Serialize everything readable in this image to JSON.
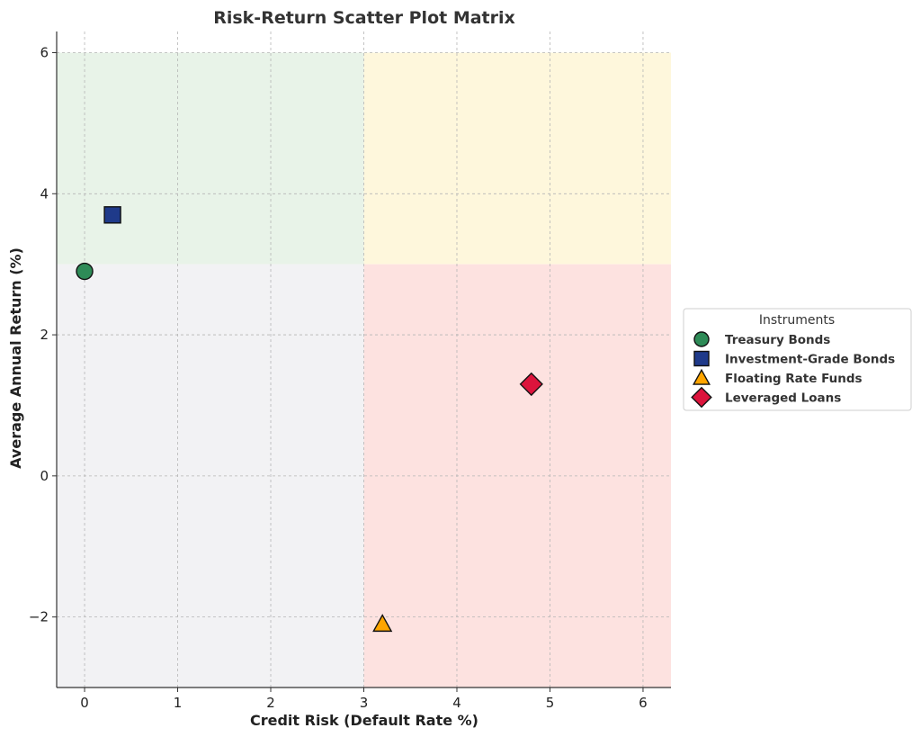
{
  "chart_data": {
    "type": "scatter",
    "title": "Risk-Return Scatter Plot Matrix",
    "xlabel": "Credit Risk (Default Rate %)",
    "ylabel": "Average Annual Return (%)",
    "xlim": [
      -0.3,
      6.3
    ],
    "ylim": [
      -3.0,
      6.3
    ],
    "xticks": [
      0,
      1,
      2,
      3,
      4,
      5,
      6
    ],
    "xtick_labels": [
      "0",
      "1",
      "2",
      "3",
      "4",
      "5",
      "6"
    ],
    "yticks": [
      -2,
      0,
      2,
      4,
      6
    ],
    "ytick_labels": [
      "−2",
      "0",
      "2",
      "4",
      "6"
    ],
    "grid": true,
    "quadrants": [
      {
        "x": [
          -0.3,
          3
        ],
        "y": [
          3,
          6
        ],
        "color": "#e8f3e8"
      },
      {
        "x": [
          3,
          6.3
        ],
        "y": [
          3,
          6
        ],
        "color": "#fef7dc"
      },
      {
        "x": [
          -0.3,
          3
        ],
        "y": [
          -3,
          3
        ],
        "color": "#f2f2f4"
      },
      {
        "x": [
          3,
          6.3
        ],
        "y": [
          -3,
          3
        ],
        "color": "#fde2e0"
      }
    ],
    "legend": {
      "title": "Instruments",
      "placement": "outside-right"
    },
    "series": [
      {
        "name": "Treasury Bonds",
        "marker": "circle",
        "color": "#2e8b57",
        "x": 0.0,
        "y": 2.9
      },
      {
        "name": "Investment-Grade Bonds",
        "marker": "square",
        "color": "#1f3a8a",
        "x": 0.3,
        "y": 3.7
      },
      {
        "name": "Floating Rate Funds",
        "marker": "triangle",
        "color": "#ffa500",
        "x": 3.2,
        "y": -2.1
      },
      {
        "name": "Leveraged Loans",
        "marker": "diamond",
        "color": "#dc143c",
        "x": 4.8,
        "y": 1.3
      }
    ]
  }
}
